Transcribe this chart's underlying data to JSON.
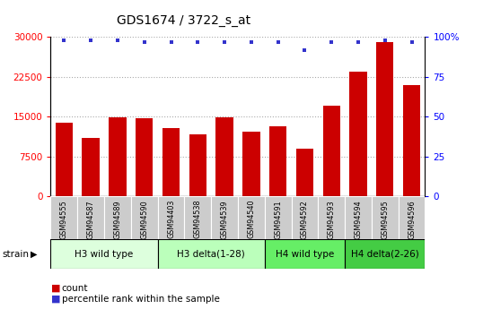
{
  "title": "GDS1674 / 3722_s_at",
  "samples": [
    "GSM94555",
    "GSM94587",
    "GSM94589",
    "GSM94590",
    "GSM94403",
    "GSM94538",
    "GSM94539",
    "GSM94540",
    "GSM94591",
    "GSM94592",
    "GSM94593",
    "GSM94594",
    "GSM94595",
    "GSM94596"
  ],
  "counts": [
    13800,
    11000,
    14800,
    14700,
    12800,
    11700,
    14800,
    12100,
    13200,
    9000,
    17000,
    23500,
    29000,
    21000
  ],
  "percentiles": [
    98,
    98,
    98,
    97,
    97,
    97,
    97,
    97,
    97,
    92,
    97,
    97,
    98,
    97
  ],
  "groups": [
    {
      "label": "H3 wild type",
      "start": 0,
      "end": 4,
      "color": "#ddffdd"
    },
    {
      "label": "H3 delta(1-28)",
      "start": 4,
      "end": 8,
      "color": "#bbffbb"
    },
    {
      "label": "H4 wild type",
      "start": 8,
      "end": 11,
      "color": "#66ee66"
    },
    {
      "label": "H4 delta(2-26)",
      "start": 11,
      "end": 14,
      "color": "#44cc44"
    }
  ],
  "bar_color": "#cc0000",
  "dot_color": "#3333cc",
  "ylim_left": [
    0,
    30000
  ],
  "ylim_right": [
    0,
    100
  ],
  "yticks_left": [
    0,
    7500,
    15000,
    22500,
    30000
  ],
  "yticks_right": [
    0,
    25,
    50,
    75,
    100
  ],
  "yticklabels_right": [
    "0",
    "25",
    "50",
    "75",
    "100%"
  ],
  "bg_color": "#ffffff",
  "grid_color": "#aaaaaa",
  "sample_bg_color": "#cccccc"
}
